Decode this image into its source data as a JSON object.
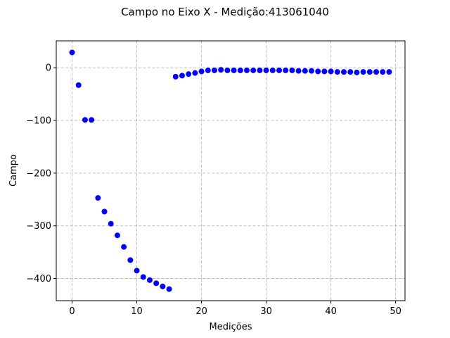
{
  "chart_data": {
    "type": "scatter",
    "title": "Campo no Eixo X - Medição:413061040",
    "xlabel": "Medições",
    "ylabel": "Campo",
    "xlim": [
      -2.45,
      51.45
    ],
    "ylim": [
      -442,
      51
    ],
    "xticks": [
      0,
      10,
      20,
      30,
      40,
      50
    ],
    "yticks": [
      0,
      -100,
      -200,
      -300,
      -400
    ],
    "xtick_labels": [
      "0",
      "10",
      "20",
      "30",
      "40",
      "50"
    ],
    "ytick_labels": [
      "0",
      "−100",
      "−200",
      "−300",
      "−400"
    ],
    "grid": true,
    "marker_color": "#0000ff",
    "series": [
      {
        "x": [
          0,
          1,
          2,
          3,
          4,
          5,
          6,
          7,
          8,
          9,
          10,
          11,
          12,
          13,
          14,
          15,
          16,
          17,
          18,
          19,
          20,
          21,
          22,
          23,
          24,
          25,
          26,
          27,
          28,
          29,
          30,
          31,
          32,
          33,
          34,
          35,
          36,
          37,
          38,
          39,
          40,
          41,
          42,
          43,
          44,
          45,
          46,
          47,
          48,
          49
        ],
        "y": [
          29,
          -33,
          -99,
          -99,
          -247,
          -273,
          -296,
          -318,
          -340,
          -365,
          -385,
          -397,
          -403,
          -409,
          -415,
          -420,
          -17,
          -15,
          -12,
          -10,
          -7,
          -5,
          -5,
          -4,
          -5,
          -5,
          -5,
          -5,
          -5,
          -5,
          -5,
          -5,
          -5,
          -5,
          -5,
          -6,
          -6,
          -6,
          -7,
          -7,
          -7,
          -8,
          -8,
          -8,
          -9,
          -8,
          -8,
          -8,
          -8,
          -8
        ]
      }
    ]
  }
}
